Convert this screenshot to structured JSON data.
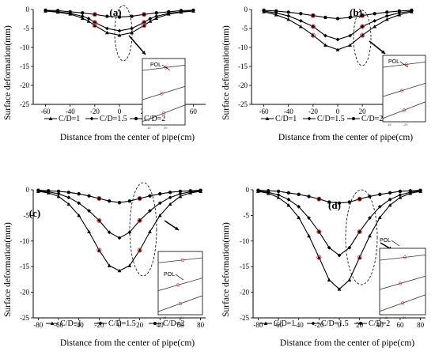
{
  "figure": {
    "ylabel": "Surface deformation(mm)",
    "xlabel": "Distance from the center of pipe(cm)",
    "legend": [
      "C/D=1",
      "C/D=1.5",
      "C/D=2"
    ],
    "inset_label": "POL"
  },
  "chart_data": [
    {
      "type": "line",
      "panel_label": "(a)",
      "xlabel": "Distance from the center of pipe(cm)",
      "ylabel": "Surface deformation(mm)",
      "xlim": [
        -70,
        70
      ],
      "ylim": [
        -25,
        0
      ],
      "xticks": [
        -60,
        -40,
        -20,
        0,
        20,
        40,
        60
      ],
      "yticks": [
        0,
        -5,
        -10,
        -15,
        -20,
        -25
      ],
      "grid": false,
      "legend_position": "bottom",
      "series": [
        {
          "name": "C/D=1",
          "marker": "triangle",
          "x": [
            -60,
            -50,
            -40,
            -30,
            -25,
            -20,
            -10,
            0,
            10,
            20,
            25,
            30,
            40,
            50,
            60
          ],
          "y": [
            -0.4,
            -0.7,
            -1.2,
            -2.3,
            -3.1,
            -4.2,
            -6.1,
            -6.8,
            -6.1,
            -4.2,
            -3.1,
            -2.3,
            -1.2,
            -0.7,
            -0.4
          ]
        },
        {
          "name": "C/D=1.5",
          "marker": "diamond",
          "x": [
            -60,
            -50,
            -40,
            -30,
            -25,
            -20,
            -10,
            0,
            10,
            20,
            25,
            30,
            40,
            50,
            60
          ],
          "y": [
            -0.3,
            -0.6,
            -1.0,
            -1.8,
            -2.4,
            -3.4,
            -5.0,
            -5.6,
            -5.0,
            -3.4,
            -2.4,
            -1.8,
            -1.0,
            -0.6,
            -0.3
          ]
        },
        {
          "name": "C/D=2",
          "marker": "circle",
          "x": [
            -60,
            -50,
            -40,
            -30,
            -20,
            -10,
            0,
            10,
            20,
            30,
            40,
            50,
            60
          ],
          "y": [
            -0.2,
            -0.3,
            -0.6,
            -0.9,
            -1.3,
            -1.8,
            -2.0,
            -1.8,
            -1.3,
            -0.9,
            -0.6,
            -0.3,
            -0.2
          ]
        }
      ],
      "markers_red": [
        {
          "x": -20,
          "y": -4.2
        },
        {
          "x": -20,
          "y": -3.4
        },
        {
          "x": -20,
          "y": -1.3
        },
        {
          "x": 20,
          "y": -4.2
        },
        {
          "x": 20,
          "y": -3.4
        },
        {
          "x": 20,
          "y": -1.3
        }
      ],
      "annotation": "POL"
    },
    {
      "type": "line",
      "panel_label": "(b)",
      "xlabel": "Distance from the center of pipe(cm)",
      "ylabel": "Surface deformation(mm)",
      "xlim": [
        -70,
        70
      ],
      "ylim": [
        -25,
        0
      ],
      "xticks": [
        -60,
        -40,
        -20,
        0,
        20,
        40,
        60
      ],
      "yticks": [
        0,
        -5,
        -10,
        -15,
        -20,
        -25
      ],
      "grid": false,
      "legend_position": "bottom",
      "series": [
        {
          "name": "C/D=1",
          "marker": "triangle",
          "x": [
            -60,
            -50,
            -40,
            -30,
            -20,
            -10,
            0,
            10,
            20,
            30,
            40,
            50,
            60
          ],
          "y": [
            -0.6,
            -1.4,
            -2.6,
            -4.5,
            -6.8,
            -9.4,
            -10.6,
            -9.4,
            -6.8,
            -4.5,
            -2.6,
            -1.4,
            -0.6
          ]
        },
        {
          "name": "C/D=1.5",
          "marker": "diamond",
          "x": [
            -60,
            -50,
            -40,
            -30,
            -20,
            -10,
            0,
            10,
            20,
            30,
            40,
            50,
            60
          ],
          "y": [
            -0.4,
            -0.9,
            -1.7,
            -3.0,
            -4.5,
            -6.9,
            -7.9,
            -6.9,
            -4.5,
            -3.0,
            -1.7,
            -0.9,
            -0.4
          ]
        },
        {
          "name": "C/D=2",
          "marker": "circle",
          "x": [
            -60,
            -50,
            -40,
            -30,
            -20,
            -10,
            0,
            10,
            20,
            30,
            40,
            50,
            60
          ],
          "y": [
            -0.2,
            -0.4,
            -0.7,
            -1.1,
            -1.6,
            -2.1,
            -2.4,
            -2.1,
            -1.6,
            -1.1,
            -0.7,
            -0.4,
            -0.2
          ]
        }
      ],
      "markers_red": [
        {
          "x": -20,
          "y": -6.8
        },
        {
          "x": -20,
          "y": -4.5
        },
        {
          "x": -20,
          "y": -1.6
        },
        {
          "x": 20,
          "y": -6.8
        },
        {
          "x": 20,
          "y": -4.5
        },
        {
          "x": 20,
          "y": -1.6
        }
      ],
      "annotation": "POL"
    },
    {
      "type": "line",
      "panel_label": "(c)",
      "xlabel": "Distance from the center of pipe(cm)",
      "ylabel": "Surface deformation(mm)",
      "xlim": [
        -85,
        85
      ],
      "ylim": [
        -25,
        0
      ],
      "xticks": [
        -80,
        -60,
        -40,
        -20,
        0,
        20,
        40,
        60,
        80
      ],
      "yticks": [
        0,
        -5,
        -10,
        -15,
        -20,
        -25
      ],
      "grid": false,
      "legend_position": "bottom",
      "series": [
        {
          "name": "C/D=1",
          "marker": "triangle",
          "x": [
            -80,
            -70,
            -60,
            -50,
            -40,
            -30,
            -20,
            -10,
            0,
            10,
            20,
            30,
            40,
            50,
            60,
            70,
            80
          ],
          "y": [
            -0.3,
            -0.6,
            -1.3,
            -2.8,
            -5.0,
            -8.2,
            -11.8,
            -14.8,
            -15.8,
            -14.8,
            -11.8,
            -8.2,
            -5.0,
            -2.8,
            -1.3,
            -0.6,
            -0.3
          ]
        },
        {
          "name": "C/D=1.5",
          "marker": "diamond",
          "x": [
            -80,
            -70,
            -60,
            -50,
            -40,
            -30,
            -20,
            -10,
            0,
            10,
            20,
            30,
            40,
            50,
            60,
            70,
            80
          ],
          "y": [
            -0.2,
            -0.4,
            -0.8,
            -1.5,
            -2.6,
            -4.1,
            -6.0,
            -8.3,
            -9.4,
            -8.3,
            -6.0,
            -4.1,
            -2.6,
            -1.5,
            -0.8,
            -0.4,
            -0.2
          ]
        },
        {
          "name": "C/D=2",
          "marker": "circle",
          "x": [
            -80,
            -70,
            -60,
            -50,
            -40,
            -30,
            -20,
            -10,
            0,
            10,
            20,
            30,
            40,
            50,
            60,
            70,
            80
          ],
          "y": [
            -0.1,
            -0.2,
            -0.3,
            -0.5,
            -0.8,
            -1.2,
            -1.7,
            -2.2,
            -2.5,
            -2.2,
            -1.7,
            -1.2,
            -0.8,
            -0.5,
            -0.3,
            -0.2,
            -0.1
          ]
        }
      ],
      "markers_red": [
        {
          "x": -20,
          "y": -11.8
        },
        {
          "x": -20,
          "y": -6.0
        },
        {
          "x": -20,
          "y": -1.7
        },
        {
          "x": 20,
          "y": -11.8
        },
        {
          "x": 20,
          "y": -6.0
        },
        {
          "x": 20,
          "y": -1.7
        }
      ],
      "annotation": "POL"
    },
    {
      "type": "line",
      "panel_label": "(d)",
      "xlabel": "Distance from the center of pipe(cm)",
      "ylabel": "Surface deformation(mm)",
      "xlim": [
        -85,
        85
      ],
      "ylim": [
        -25,
        0
      ],
      "xticks": [
        -80,
        -60,
        -40,
        -20,
        0,
        20,
        40,
        60,
        80
      ],
      "yticks": [
        0,
        -5,
        -10,
        -15,
        -20,
        -25
      ],
      "grid": false,
      "legend_position": "bottom",
      "series": [
        {
          "name": "C/D=1",
          "marker": "triangle",
          "x": [
            -80,
            -70,
            -60,
            -50,
            -40,
            -30,
            -20,
            -10,
            0,
            10,
            20,
            30,
            40,
            50,
            60,
            70,
            80
          ],
          "y": [
            -0.3,
            -0.7,
            -1.5,
            -3.0,
            -5.4,
            -9.0,
            -13.2,
            -17.6,
            -19.4,
            -17.6,
            -13.2,
            -9.0,
            -5.4,
            -3.0,
            -1.5,
            -0.7,
            -0.3
          ]
        },
        {
          "name": "C/D=1.5",
          "marker": "diamond",
          "x": [
            -80,
            -70,
            -60,
            -50,
            -40,
            -30,
            -20,
            -10,
            0,
            10,
            20,
            30,
            40,
            50,
            60,
            70,
            80
          ],
          "y": [
            -0.2,
            -0.5,
            -1.0,
            -1.9,
            -3.3,
            -5.5,
            -8.2,
            -11.3,
            -12.8,
            -11.3,
            -8.2,
            -5.5,
            -3.3,
            -1.9,
            -1.0,
            -0.5,
            -0.2
          ]
        },
        {
          "name": "C/D=2",
          "marker": "circle",
          "x": [
            -80,
            -70,
            -60,
            -50,
            -40,
            -30,
            -20,
            -10,
            0,
            10,
            20,
            30,
            40,
            50,
            60,
            70,
            80
          ],
          "y": [
            -0.1,
            -0.2,
            -0.3,
            -0.6,
            -0.9,
            -1.3,
            -1.8,
            -2.4,
            -2.6,
            -2.4,
            -1.8,
            -1.3,
            -0.9,
            -0.6,
            -0.3,
            -0.2,
            -0.1
          ]
        }
      ],
      "markers_red": [
        {
          "x": -20,
          "y": -13.2
        },
        {
          "x": -20,
          "y": -8.2
        },
        {
          "x": -20,
          "y": -1.8
        },
        {
          "x": 20,
          "y": -13.2
        },
        {
          "x": 20,
          "y": -8.2
        },
        {
          "x": 20,
          "y": -1.8
        }
      ],
      "annotation": "POL"
    }
  ]
}
